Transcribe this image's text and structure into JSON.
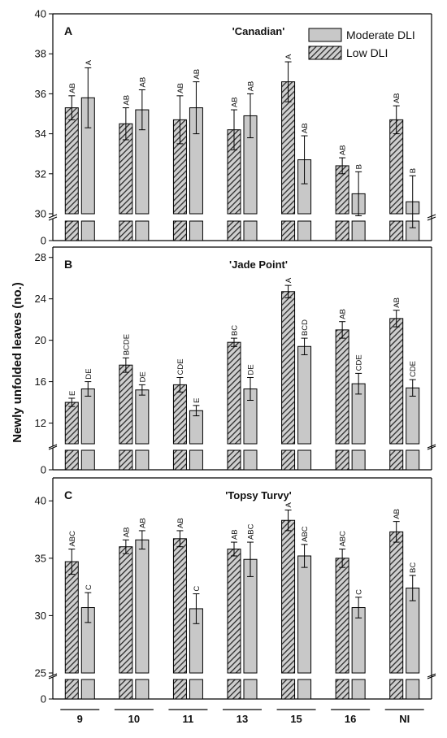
{
  "chart_data": {
    "type": "bar",
    "ylabel": "Newly unfolded leaves (no.)",
    "categories": [
      "9",
      "10",
      "11",
      "13",
      "15",
      "16",
      "NI"
    ],
    "legend": {
      "placement": "top-right",
      "entries": [
        {
          "name": "Moderate DLI",
          "fill": "#c8c8c8",
          "pattern": "solid"
        },
        {
          "name": "Low DLI",
          "fill": "#7a7a7a",
          "pattern": "hatched"
        }
      ]
    },
    "panels": [
      {
        "letter": "A",
        "title": "'Canadian'",
        "ylim": [
          30,
          40
        ],
        "yticks": [
          30,
          32,
          34,
          36,
          38,
          40
        ],
        "break_zero": "0",
        "series": [
          {
            "name": "Low DLI",
            "values": [
              35.3,
              34.5,
              34.7,
              34.2,
              36.6,
              32.4,
              34.7
            ],
            "errors": [
              0.6,
              0.8,
              1.2,
              1.0,
              1.0,
              0.4,
              0.7
            ],
            "labels": [
              "AB",
              "AB",
              "AB",
              "AB",
              "A",
              "AB",
              "AB"
            ]
          },
          {
            "name": "Moderate DLI",
            "values": [
              35.8,
              35.2,
              35.3,
              34.9,
              32.7,
              31.0,
              30.6
            ],
            "errors": [
              1.5,
              1.0,
              1.3,
              1.1,
              1.2,
              1.1,
              1.3
            ],
            "labels": [
              "A",
              "AB",
              "AB",
              "AB",
              "AB",
              "B",
              "B"
            ]
          }
        ]
      },
      {
        "letter": "B",
        "title": "'Jade Point'",
        "ylim": [
          10,
          29
        ],
        "yticks": [
          12,
          16,
          20,
          24,
          28
        ],
        "break_zero": "0",
        "series": [
          {
            "name": "Low DLI",
            "values": [
              14.0,
              17.6,
              15.7,
              19.8,
              24.7,
              21.0,
              22.1
            ],
            "errors": [
              0.4,
              0.7,
              0.7,
              0.4,
              0.6,
              0.8,
              0.8
            ],
            "labels": [
              "E",
              "BCDE",
              "CDE",
              "BC",
              "A",
              "AB",
              "AB"
            ]
          },
          {
            "name": "Moderate DLI",
            "values": [
              15.3,
              15.2,
              13.2,
              15.3,
              19.4,
              15.8,
              15.4
            ],
            "errors": [
              0.7,
              0.5,
              0.5,
              1.1,
              0.8,
              1.0,
              0.8
            ],
            "labels": [
              "DE",
              "DE",
              "E",
              "DE",
              "BCD",
              "CDE",
              "CDE"
            ]
          }
        ]
      },
      {
        "letter": "C",
        "title": "'Topsy Turvy'",
        "ylim": [
          25,
          42
        ],
        "yticks": [
          25,
          30,
          35,
          40
        ],
        "break_zero": "0",
        "series": [
          {
            "name": "Low DLI",
            "values": [
              34.7,
              36.0,
              36.7,
              35.8,
              38.3,
              35.0,
              37.3
            ],
            "errors": [
              1.1,
              0.6,
              0.7,
              0.6,
              0.9,
              0.8,
              0.9
            ],
            "labels": [
              "ABC",
              "AB",
              "AB",
              "AB",
              "A",
              "ABC",
              "AB"
            ]
          },
          {
            "name": "Moderate DLI",
            "values": [
              30.7,
              36.6,
              30.6,
              34.9,
              35.2,
              30.7,
              32.4
            ],
            "errors": [
              1.3,
              0.8,
              1.3,
              1.5,
              1.0,
              0.9,
              1.1
            ],
            "labels": [
              "C",
              "AB",
              "C",
              "ABC",
              "ABC",
              "C",
              "BC"
            ]
          }
        ]
      }
    ]
  }
}
